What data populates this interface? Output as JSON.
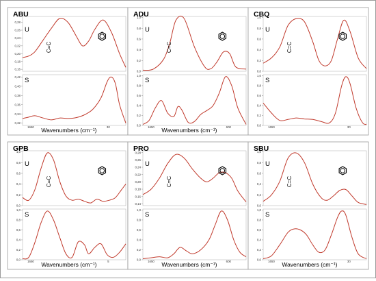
{
  "colors": {
    "curve": "#c0392b",
    "frame": "#9a9a9a",
    "text": "#000000"
  },
  "chart_data": [
    {
      "type": "line",
      "title": "ABU",
      "xlabel": "Wavenumbers (cm⁻¹)",
      "x_ticks": [
        "1650",
        "30"
      ],
      "bond_label": "C=C",
      "ring_label": "benzene-ring-icon",
      "panels": [
        {
          "label": "U",
          "y_ticks": [
            "0,16",
            "0,18",
            "0,20",
            "0,22",
            "0,24",
            "0,26",
            "0,28"
          ],
          "ylim": [
            0.155,
            0.295
          ],
          "x": [
            0,
            6,
            12,
            20,
            28,
            36,
            44,
            52,
            58,
            64,
            70,
            78,
            86,
            94,
            100
          ],
          "values": [
            0.19,
            0.194,
            0.205,
            0.235,
            0.265,
            0.29,
            0.28,
            0.245,
            0.22,
            0.232,
            0.262,
            0.286,
            0.255,
            0.2,
            0.165
          ]
        },
        {
          "label": "S",
          "y_ticks": [
            "0,32",
            "0,34",
            "0,36",
            "0,38",
            "0,40",
            "0,42"
          ],
          "ylim": [
            0.315,
            0.425
          ],
          "x": [
            0,
            6,
            12,
            20,
            28,
            36,
            44,
            52,
            60,
            68,
            76,
            82,
            86,
            90,
            94,
            100
          ],
          "values": [
            0.33,
            0.333,
            0.336,
            0.331,
            0.327,
            0.331,
            0.33,
            0.332,
            0.338,
            0.35,
            0.375,
            0.41,
            0.42,
            0.405,
            0.36,
            0.32
          ]
        }
      ]
    },
    {
      "type": "line",
      "title": "ADU",
      "xlabel": "Wavenumbers (cm⁻¹)",
      "x_ticks": [
        "1650",
        "600"
      ],
      "bond_label": "C=C",
      "ring_label": "benzene-ring-icon",
      "panels": [
        {
          "label": "U",
          "y_ticks": [
            "0,0",
            "0,2",
            "0,4",
            "0,6",
            "0,8",
            "1,0"
          ],
          "ylim": [
            0,
            1.02
          ],
          "x": [
            0,
            10,
            20,
            26,
            32,
            40,
            50,
            60,
            66,
            72,
            78,
            84,
            90,
            100
          ],
          "values": [
            0.02,
            0.04,
            0.22,
            0.52,
            0.95,
            0.98,
            0.45,
            0.08,
            0.05,
            0.18,
            0.36,
            0.33,
            0.08,
            0.04
          ]
        },
        {
          "label": "S",
          "y_ticks": [
            "0,0",
            "0,2",
            "0,4",
            "0,6",
            "0,8",
            "1,0"
          ],
          "ylim": [
            0,
            1.02
          ],
          "x": [
            0,
            6,
            12,
            18,
            24,
            30,
            34,
            38,
            44,
            50,
            56,
            62,
            68,
            74,
            80,
            86,
            92,
            100
          ],
          "values": [
            0.02,
            0.1,
            0.35,
            0.5,
            0.25,
            0.18,
            0.38,
            0.3,
            0.06,
            0.08,
            0.22,
            0.3,
            0.4,
            0.65,
            0.98,
            0.8,
            0.35,
            0.02
          ]
        }
      ]
    },
    {
      "type": "line",
      "title": "CBQ",
      "xlabel": "",
      "x_ticks": [
        "1650",
        "30"
      ],
      "bond_label": "C=C",
      "ring_label": "benzene-ring-icon",
      "panels": [
        {
          "label": "U",
          "y_ticks": [
            "0,0",
            "0,2",
            "0,4",
            "0,6",
            "0,8",
            "1,0"
          ],
          "ylim": [
            0,
            1.02
          ],
          "x": [
            0,
            8,
            16,
            24,
            32,
            40,
            48,
            54,
            60,
            66,
            72,
            78,
            84,
            92,
            100
          ],
          "values": [
            0.15,
            0.25,
            0.45,
            0.85,
            0.98,
            0.92,
            0.55,
            0.2,
            0.1,
            0.2,
            0.6,
            0.95,
            0.75,
            0.25,
            0.05
          ]
        },
        {
          "label": "S",
          "y_ticks": [
            "0,0",
            "0,2",
            "0,4",
            "0,6",
            "0,8",
            "1,0"
          ],
          "ylim": [
            0,
            1.02
          ],
          "x": [
            0,
            8,
            16,
            24,
            32,
            40,
            48,
            56,
            64,
            70,
            76,
            80,
            84,
            90,
            96,
            100
          ],
          "values": [
            0.45,
            0.25,
            0.1,
            0.12,
            0.15,
            0.13,
            0.12,
            0.08,
            0.05,
            0.25,
            0.8,
            0.98,
            0.85,
            0.35,
            0.06,
            0.02
          ]
        }
      ]
    },
    {
      "type": "line",
      "title": "GPB",
      "xlabel": "Wavenumbers (cm⁻¹)",
      "x_ticks": [
        "1650",
        "5"
      ],
      "bond_label": "C=C",
      "ring_label": "benzene-ring-icon",
      "panels": [
        {
          "label": "U",
          "y_ticks": [
            "0,0",
            "0,2",
            "0,4",
            "0,6",
            "0,8",
            "1,0"
          ],
          "ylim": [
            0,
            1.02
          ],
          "x": [
            0,
            6,
            12,
            18,
            24,
            30,
            36,
            42,
            48,
            54,
            60,
            66,
            72,
            78,
            84,
            90,
            96,
            100
          ],
          "values": [
            0.15,
            0.1,
            0.3,
            0.7,
            0.98,
            0.85,
            0.45,
            0.18,
            0.1,
            0.12,
            0.08,
            0.05,
            0.12,
            0.08,
            0.1,
            0.15,
            0.3,
            0.4
          ]
        },
        {
          "label": "S",
          "y_ticks": [
            "0,0",
            "0,2",
            "0,4",
            "0,6",
            "0,8",
            "1,0"
          ],
          "ylim": [
            0,
            1.02
          ],
          "x": [
            0,
            6,
            12,
            18,
            24,
            30,
            36,
            42,
            48,
            54,
            60,
            64,
            70,
            76,
            82,
            88,
            94,
            100
          ],
          "values": [
            0.02,
            0.05,
            0.35,
            0.75,
            0.98,
            0.8,
            0.45,
            0.12,
            0.05,
            0.36,
            0.3,
            0.12,
            0.25,
            0.32,
            0.1,
            0.05,
            0.15,
            0.32
          ]
        }
      ]
    },
    {
      "type": "line",
      "title": "PRO",
      "xlabel": "Wavenumbers (cm⁻¹)",
      "x_ticks": [
        "1650",
        "600"
      ],
      "bond_label": "C=C",
      "ring_label": "benzene-ring-icon",
      "panels": [
        {
          "label": "U",
          "y_ticks": [
            "0,14",
            "0,16",
            "0,18",
            "0,20",
            "0,22",
            "0,24",
            "0,26",
            "0,28"
          ],
          "ylim": [
            0.135,
            0.285
          ],
          "x": [
            0,
            8,
            16,
            24,
            32,
            40,
            48,
            56,
            62,
            68,
            74,
            80,
            86,
            92,
            100
          ],
          "values": [
            0.165,
            0.18,
            0.21,
            0.25,
            0.275,
            0.265,
            0.235,
            0.21,
            0.2,
            0.21,
            0.225,
            0.225,
            0.21,
            0.175,
            0.145
          ]
        },
        {
          "label": "S",
          "y_ticks": [
            "0,0",
            "0,2",
            "0,4",
            "0,6",
            "0,8",
            "1,0"
          ],
          "ylim": [
            0,
            1.02
          ],
          "x": [
            0,
            8,
            16,
            24,
            30,
            36,
            42,
            48,
            56,
            64,
            70,
            76,
            82,
            88,
            94,
            100
          ],
          "values": [
            0.02,
            0.04,
            0.06,
            0.04,
            0.12,
            0.25,
            0.18,
            0.12,
            0.2,
            0.4,
            0.7,
            0.98,
            0.8,
            0.4,
            0.15,
            0.06
          ]
        }
      ]
    },
    {
      "type": "line",
      "title": "SBU",
      "xlabel": "Wavenumbers (cm⁻¹)",
      "x_ticks": [
        "1650",
        "30"
      ],
      "bond_label": "C=C",
      "ring_label": "benzene-ring-icon",
      "panels": [
        {
          "label": "U",
          "y_ticks": [
            "0,0",
            "0,2",
            "0,4",
            "0,6",
            "0,8",
            "1,0"
          ],
          "ylim": [
            0,
            1.02
          ],
          "x": [
            0,
            8,
            16,
            24,
            32,
            40,
            48,
            56,
            62,
            68,
            74,
            80,
            86,
            92,
            100
          ],
          "values": [
            0.08,
            0.2,
            0.45,
            0.88,
            0.98,
            0.8,
            0.4,
            0.15,
            0.1,
            0.18,
            0.28,
            0.3,
            0.18,
            0.06,
            0.02
          ]
        },
        {
          "label": "S",
          "y_ticks": [
            "0,0",
            "0,2",
            "0,4",
            "0,6",
            "0,8",
            "1,0"
          ],
          "ylim": [
            0,
            1.02
          ],
          "x": [
            0,
            8,
            16,
            24,
            30,
            36,
            42,
            48,
            54,
            60,
            66,
            72,
            76,
            80,
            86,
            92,
            100
          ],
          "values": [
            0.02,
            0.08,
            0.3,
            0.55,
            0.62,
            0.6,
            0.5,
            0.3,
            0.15,
            0.2,
            0.5,
            0.85,
            0.98,
            0.9,
            0.45,
            0.12,
            0.02
          ]
        }
      ]
    }
  ]
}
